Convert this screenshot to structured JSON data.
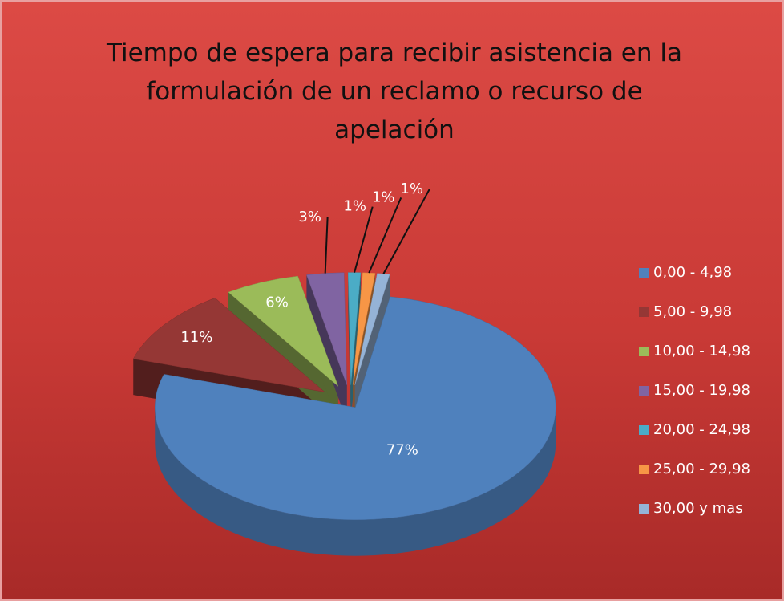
{
  "chart_data": {
    "type": "pie3d",
    "title": "Tiempo de espera para recibir asistencia en la formulación de un reclamo o recurso de apelación",
    "categories": [
      "0,00 - 4,98",
      "5,00 - 9,98",
      "10,00 - 14,98",
      "15,00 - 19,98",
      "20,00 - 24,98",
      "25,00 - 29,98",
      "30,00 y mas"
    ],
    "values": [
      77,
      11,
      6,
      3,
      1,
      1,
      1
    ],
    "value_labels": [
      "77%",
      "11%",
      "6%",
      "3%",
      "1%",
      "1%",
      "1%"
    ],
    "colors": [
      "#4f81bd",
      "#953735",
      "#9bbb59",
      "#8064a2",
      "#4bacc6",
      "#f79646",
      "#95b3d7"
    ],
    "legend": "right"
  }
}
